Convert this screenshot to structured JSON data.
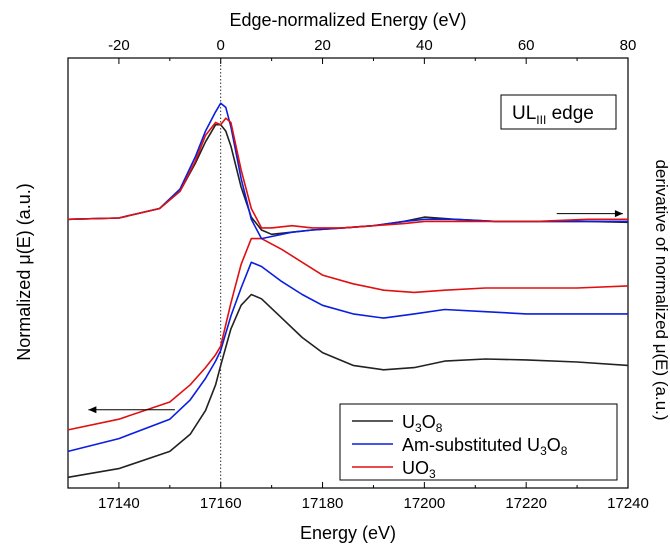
{
  "chart_data": {
    "type": "line",
    "xlabel_bottom": "Energy (eV)",
    "xlabel_top": "Edge-normalized Energy (eV)",
    "ylabel_left": "Normalized μ(E) (a.u.)",
    "ylabel_right": "derivative of normalized μ(E) (a.u.)",
    "x_bottom_range": [
      17130,
      17240
    ],
    "x_bottom_ticks": [
      17140,
      17160,
      17180,
      17200,
      17220,
      17240
    ],
    "x_top_range": [
      -30,
      80
    ],
    "x_top_ticks": [
      -20,
      0,
      20,
      40,
      60,
      80
    ],
    "edge_energy": 17160,
    "y_range": [
      0,
      10
    ],
    "edge_label": {
      "main": "UL",
      "sub": "III",
      "rest": " edge"
    },
    "grid": false,
    "legend": {
      "placement": "bottom-right",
      "entries": [
        {
          "name": "U",
          "sub1": "3",
          "mid": "O",
          "sub2": "8",
          "color": "#222222"
        },
        {
          "name": "Am-substituted U",
          "sub1": "3",
          "mid": "O",
          "sub2": "8",
          "color": "#0a1ee0"
        },
        {
          "name": "UO",
          "sub1": "3",
          "mid": "",
          "sub2": "",
          "color": "#e01010"
        }
      ]
    },
    "series": [
      {
        "group": "normalized",
        "color": "#222222",
        "x": [
          17130,
          17140,
          17150,
          17154,
          17157,
          17159,
          17160,
          17162,
          17164,
          17166,
          17168,
          17172,
          17176,
          17180,
          17186,
          17192,
          17198,
          17204,
          17212,
          17220,
          17230,
          17240
        ],
        "y": [
          0.25,
          0.45,
          0.85,
          1.25,
          1.8,
          2.4,
          2.85,
          3.7,
          4.25,
          4.5,
          4.4,
          3.95,
          3.5,
          3.15,
          2.85,
          2.75,
          2.8,
          2.95,
          3.0,
          2.98,
          2.93,
          2.85
        ]
      },
      {
        "group": "normalized",
        "color": "#0a1ee0",
        "x": [
          17130,
          17140,
          17150,
          17154,
          17157,
          17159,
          17160,
          17162,
          17164,
          17166,
          17168,
          17172,
          17176,
          17180,
          17186,
          17192,
          17198,
          17204,
          17212,
          17220,
          17230,
          17240
        ],
        "y": [
          0.85,
          1.15,
          1.6,
          2.05,
          2.55,
          2.95,
          3.2,
          4.0,
          4.65,
          5.25,
          5.15,
          4.8,
          4.5,
          4.25,
          4.05,
          3.95,
          4.05,
          4.15,
          4.1,
          4.05,
          4.05,
          4.05
        ]
      },
      {
        "group": "normalized",
        "color": "#e01010",
        "x": [
          17130,
          17140,
          17150,
          17154,
          17157,
          17159,
          17160,
          17162,
          17164,
          17166,
          17168,
          17172,
          17176,
          17180,
          17186,
          17192,
          17198,
          17204,
          17212,
          17220,
          17230,
          17240
        ],
        "y": [
          1.35,
          1.6,
          2.0,
          2.4,
          2.8,
          3.1,
          3.3,
          4.3,
          5.2,
          5.8,
          5.8,
          5.55,
          5.25,
          4.95,
          4.75,
          4.6,
          4.55,
          4.6,
          4.65,
          4.65,
          4.65,
          4.7
        ]
      },
      {
        "group": "derivative",
        "color": "#222222",
        "x": [
          17130,
          17140,
          17148,
          17152,
          17155,
          17157,
          17159,
          17160,
          17161,
          17162,
          17164,
          17166,
          17168,
          17170,
          17174,
          17178,
          17184,
          17190,
          17196,
          17200,
          17206,
          17214,
          17222,
          17232,
          17240
        ],
        "y": [
          6.25,
          6.28,
          6.5,
          6.9,
          7.55,
          8.05,
          8.45,
          8.45,
          8.3,
          7.95,
          7.0,
          6.3,
          6.0,
          5.9,
          5.95,
          6.0,
          6.05,
          6.1,
          6.2,
          6.3,
          6.25,
          6.2,
          6.2,
          6.2,
          6.18
        ]
      },
      {
        "group": "derivative",
        "color": "#0a1ee0",
        "x": [
          17130,
          17140,
          17148,
          17152,
          17155,
          17157,
          17159,
          17160,
          17161,
          17162,
          17164,
          17166,
          17168,
          17170,
          17174,
          17178,
          17184,
          17190,
          17196,
          17200,
          17206,
          17214,
          17222,
          17232,
          17240
        ],
        "y": [
          6.25,
          6.28,
          6.5,
          6.95,
          7.7,
          8.3,
          8.75,
          8.95,
          8.85,
          8.4,
          7.2,
          6.25,
          5.8,
          5.85,
          5.95,
          6.0,
          6.05,
          6.1,
          6.2,
          6.25,
          6.25,
          6.2,
          6.2,
          6.2,
          6.2
        ]
      },
      {
        "group": "derivative",
        "color": "#e01010",
        "x": [
          17130,
          17140,
          17148,
          17152,
          17155,
          17157,
          17159,
          17160,
          17161,
          17162,
          17164,
          17166,
          17168,
          17170,
          17174,
          17178,
          17184,
          17190,
          17196,
          17200,
          17206,
          17214,
          17222,
          17232,
          17240
        ],
        "y": [
          6.25,
          6.28,
          6.5,
          6.9,
          7.6,
          8.2,
          8.5,
          8.45,
          8.6,
          8.5,
          7.4,
          6.5,
          6.05,
          6.05,
          6.1,
          6.05,
          6.05,
          6.1,
          6.15,
          6.2,
          6.2,
          6.2,
          6.2,
          6.25,
          6.25
        ]
      }
    ],
    "arrows": [
      {
        "direction": "right",
        "x_from": 17226,
        "x_to": 17239,
        "y": 6.38,
        "meaning": "derivative-axis"
      },
      {
        "direction": "left",
        "x_from": 17151,
        "x_to": 17134,
        "y": 1.82,
        "meaning": "normalized-axis"
      }
    ]
  }
}
